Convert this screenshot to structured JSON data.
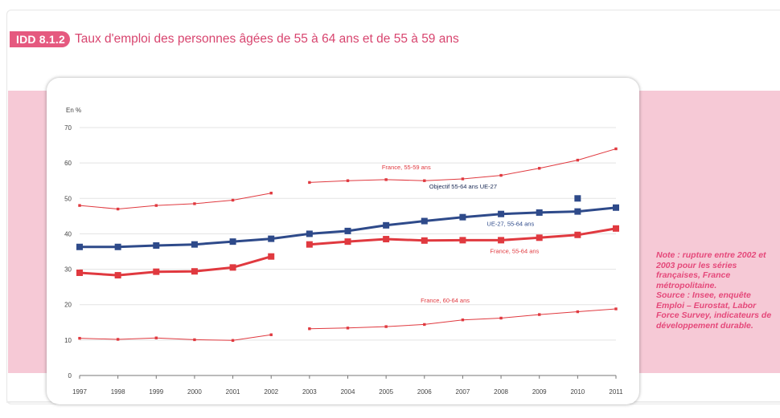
{
  "header": {
    "badge": "IDD 8.1.2",
    "title": "Taux d'emploi des personnes âgées de 55 à 64 ans et de 55 à 59 ans"
  },
  "note": {
    "lines": [
      "Note : rupture entre 2002 et 2003 pour les séries françaises, France métropolitaine.",
      "Source : Insee, enquête Emploi – Eurostat, Labor Force Survey, indicateurs de développement durable."
    ]
  },
  "colors": {
    "accent_pink": "#e5597f",
    "band_pink": "#f6c9d6",
    "france_red": "#e0393f",
    "ue_blue": "#2e4a8a"
  },
  "chart_data": {
    "type": "line",
    "ylabel": "En %",
    "ylim": [
      0,
      70
    ],
    "yticks": [
      0,
      10,
      20,
      30,
      40,
      50,
      60,
      70
    ],
    "x": [
      "1997",
      "1998",
      "1999",
      "2000",
      "2001",
      "2002",
      "2003",
      "2004",
      "2005",
      "2006",
      "2007",
      "2008",
      "2009",
      "2010",
      "2011"
    ],
    "grid": "horizontal",
    "series": [
      {
        "name": "France, 55-59 ans",
        "style": "thin",
        "values": [
          48,
          47,
          48,
          48.5,
          49.5,
          51.5,
          54.5,
          55,
          55.3,
          55,
          55.5,
          56.5,
          58.5,
          60.8,
          64
        ]
      },
      {
        "name": "UE-27, 55-64 ans",
        "style": "thick-blue",
        "values": [
          36.3,
          36.3,
          36.7,
          37,
          37.8,
          38.6,
          40,
          40.8,
          42.4,
          43.6,
          44.7,
          45.6,
          46,
          46.3,
          47.4
        ]
      },
      {
        "name": "France, 55-64 ans",
        "style": "thick-red",
        "values": [
          29,
          28.3,
          29.3,
          29.4,
          30.5,
          33.6,
          37,
          37.8,
          38.5,
          38.1,
          38.2,
          38.2,
          38.9,
          39.7,
          41.5
        ]
      },
      {
        "name": "France, 60-64 ans",
        "style": "thin",
        "values": [
          10.5,
          10.2,
          10.6,
          10.1,
          9.9,
          11.5,
          13.2,
          13.4,
          13.8,
          14.4,
          15.7,
          16.2,
          17.2,
          18,
          18.8
        ]
      },
      {
        "name": "Objectif 55-64 ans UE-27",
        "style": "marker",
        "points": [
          {
            "x": "2010",
            "y": 50
          }
        ]
      }
    ],
    "break_between": [
      "2002",
      "2003"
    ]
  }
}
